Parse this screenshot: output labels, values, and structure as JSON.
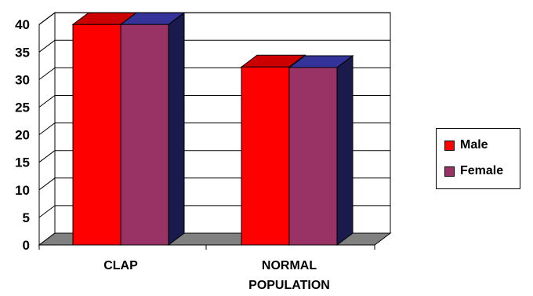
{
  "chart_data": {
    "type": "bar",
    "categories": [
      "CLAP",
      "NORMAL POPULATION"
    ],
    "category_lines": [
      [
        "CLAP"
      ],
      [
        "NORMAL",
        "POPULATION"
      ]
    ],
    "series": [
      {
        "name": "Male",
        "values": [
          40,
          32.3
        ],
        "color": "#ff0000",
        "top_color": "#cc0000",
        "side_color": "#1a1a4d"
      },
      {
        "name": "Female",
        "values": [
          40,
          32.2
        ],
        "color": "#993366",
        "top_color": "#333399",
        "side_color": "#1a1a4d"
      }
    ],
    "ylim": [
      0,
      40
    ],
    "yticks": [
      "0",
      "5",
      "10",
      "15",
      "20",
      "25",
      "30",
      "35",
      "40"
    ],
    "grid": true,
    "legend_position": "right",
    "floor_color": "#808080"
  }
}
